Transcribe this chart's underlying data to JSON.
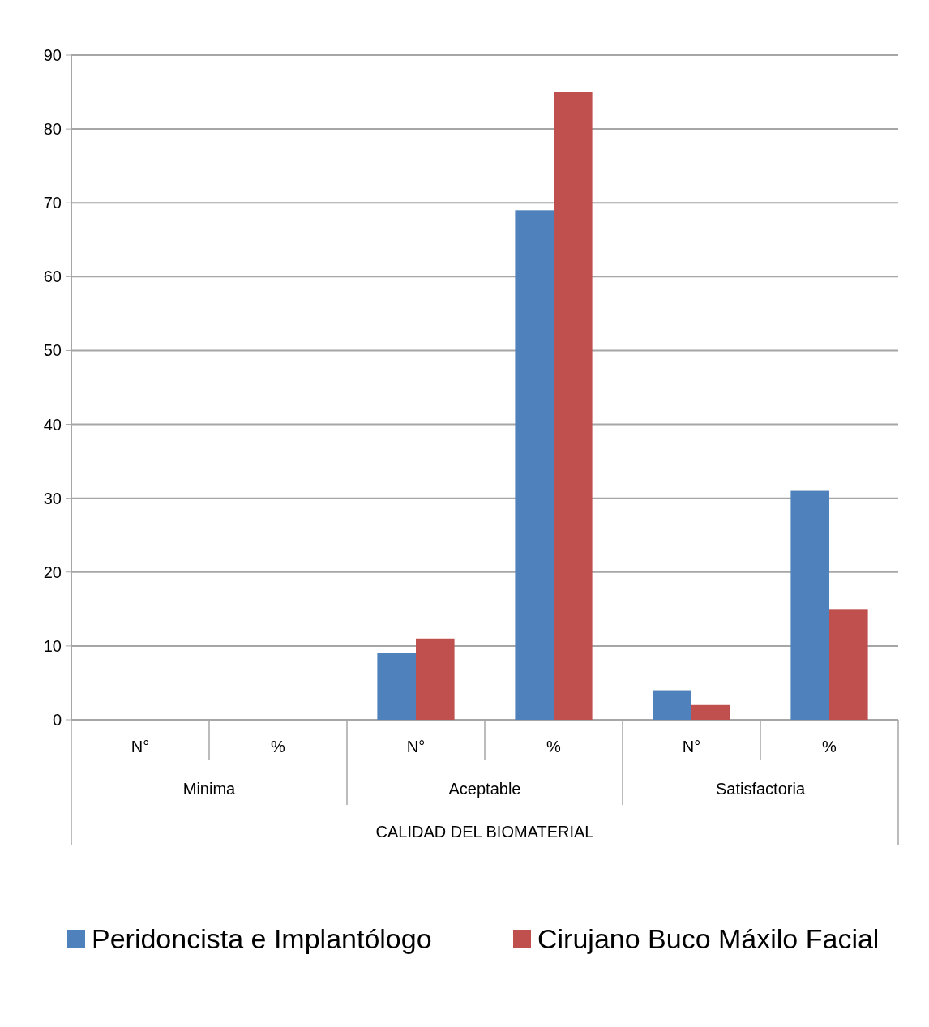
{
  "chart_data": {
    "type": "bar",
    "xlabel": "CALIDAD DEL BIOMATERIAL",
    "categories": [
      "N°",
      "%",
      "N°",
      "%",
      "N°",
      "%"
    ],
    "series": [
      {
        "name": "Peridoncista e Implantólogo",
        "color": "#4f81bd",
        "values": [
          0,
          0,
          9,
          69,
          4,
          31
        ]
      },
      {
        "name": "Cirujano Buco Máxilo Facial",
        "color": "#c0504d",
        "values": [
          0,
          0,
          11,
          85,
          2,
          15
        ]
      }
    ],
    "annotations": [
      "Minima",
      "Aceptable",
      "Satisfactoria"
    ],
    "ylim": [
      0,
      90
    ],
    "yticks": [
      0,
      10,
      20,
      30,
      40,
      50,
      60,
      70,
      80,
      90
    ],
    "grid": "y",
    "legend": "bottom"
  }
}
